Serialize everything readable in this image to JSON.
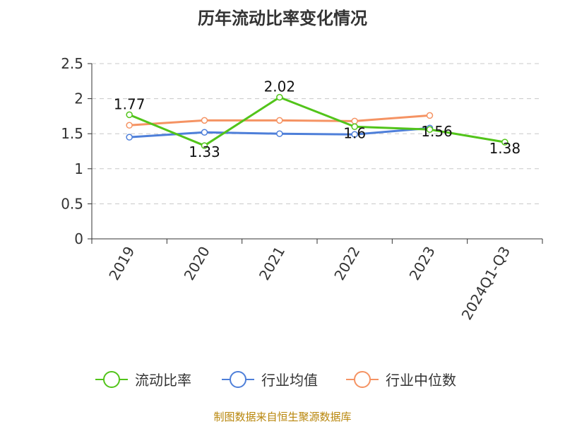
{
  "chart_data": {
    "type": "line",
    "title": "历年流动比率变化情况",
    "categories": [
      "2019",
      "2020",
      "2021",
      "2022",
      "2023",
      "2024Q1-Q3"
    ],
    "ylim": [
      0,
      2.5
    ],
    "yticks": [
      "0",
      "0.5",
      "1",
      "1.5",
      "2",
      "2.5"
    ],
    "grid": true,
    "legend_position": "bottom",
    "series": [
      {
        "name": "流动比率",
        "color": "#52c41a",
        "values": [
          1.77,
          1.33,
          2.02,
          1.6,
          1.56,
          1.38
        ],
        "labels": [
          "1.77",
          "1.33",
          "2.02",
          "1.6",
          "1.56",
          "1.38"
        ]
      },
      {
        "name": "行业均值",
        "color": "#4e7fd9",
        "values": [
          1.45,
          1.52,
          1.5,
          1.49,
          1.58,
          null
        ]
      },
      {
        "name": "行业中位数",
        "color": "#f59363",
        "values": [
          1.62,
          1.69,
          1.69,
          1.68,
          1.76,
          null
        ]
      }
    ],
    "source": "制图数据来自恒生聚源数据库"
  }
}
